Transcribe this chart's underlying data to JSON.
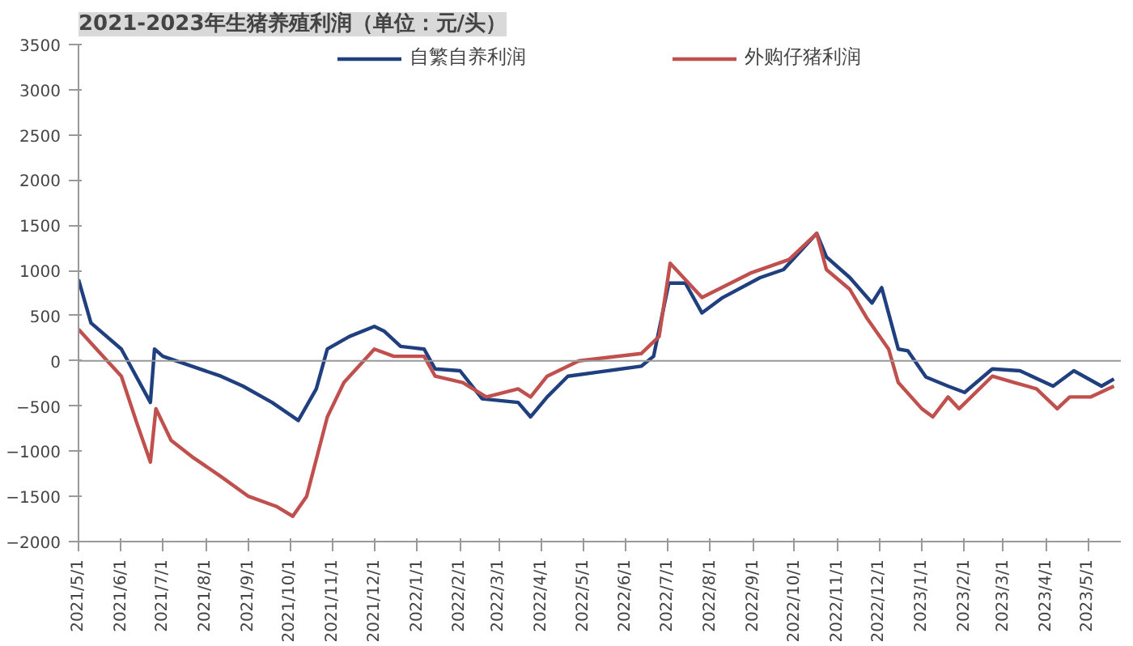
{
  "chart_data": {
    "type": "line",
    "title": "2021-2023年生猪养殖利润（单位：元/头）",
    "xlim": [
      "2021-05-01",
      "2023-05-25"
    ],
    "xticks": [
      {
        "value": "2021-05-01",
        "label": "2021/5/1"
      },
      {
        "value": "2021-06-01",
        "label": "2021/6/1"
      },
      {
        "value": "2021-07-01",
        "label": "2021/7/1"
      },
      {
        "value": "2021-08-01",
        "label": "2021/8/1"
      },
      {
        "value": "2021-09-01",
        "label": "2021/9/1"
      },
      {
        "value": "2021-10-01",
        "label": "2021/10/1"
      },
      {
        "value": "2021-11-01",
        "label": "2021/11/1"
      },
      {
        "value": "2021-12-01",
        "label": "2021/12/1"
      },
      {
        "value": "2022-01-01",
        "label": "2022/1/1"
      },
      {
        "value": "2022-02-01",
        "label": "2022/2/1"
      },
      {
        "value": "2022-03-01",
        "label": "2022/3/1"
      },
      {
        "value": "2022-04-01",
        "label": "2022/4/1"
      },
      {
        "value": "2022-05-01",
        "label": "2022/5/1"
      },
      {
        "value": "2022-06-01",
        "label": "2022/6/1"
      },
      {
        "value": "2022-07-01",
        "label": "2022/7/1"
      },
      {
        "value": "2022-08-01",
        "label": "2022/8/1"
      },
      {
        "value": "2022-09-01",
        "label": "2022/9/1"
      },
      {
        "value": "2022-10-01",
        "label": "2022/10/1"
      },
      {
        "value": "2022-11-01",
        "label": "2022/11/1"
      },
      {
        "value": "2022-12-01",
        "label": "2022/12/1"
      },
      {
        "value": "2023-01-01",
        "label": "2023/1/1"
      },
      {
        "value": "2023-02-01",
        "label": "2023/2/1"
      },
      {
        "value": "2023-03-01",
        "label": "2023/3/1"
      },
      {
        "value": "2023-04-01",
        "label": "2023/4/1"
      },
      {
        "value": "2023-05-01",
        "label": "2023/5/1"
      }
    ],
    "ylim": [
      -2000,
      3500
    ],
    "yticks": [
      -2000,
      -1500,
      -1000,
      -500,
      0,
      500,
      1000,
      1500,
      2000,
      2500,
      3000,
      3500
    ],
    "grid": false,
    "ref_lines": [
      {
        "axis": "y",
        "value": 0,
        "color": "#999999"
      }
    ],
    "legend": "top",
    "marker": "none",
    "line_style": "solid",
    "series": [
      {
        "name": "自繁自养利润",
        "color": "#1f3f7f",
        "x": [
          "2021-05-01",
          "2021-05-10",
          "2021-06-01",
          "2021-06-22",
          "2021-06-25",
          "2021-07-01",
          "2021-07-22",
          "2021-08-12",
          "2021-08-28",
          "2021-09-18",
          "2021-10-07",
          "2021-10-20",
          "2021-10-28",
          "2021-11-13",
          "2021-12-01",
          "2021-12-08",
          "2021-12-20",
          "2022-01-06",
          "2022-01-14",
          "2022-02-01",
          "2022-02-17",
          "2022-03-15",
          "2022-03-24",
          "2022-04-05",
          "2022-04-20",
          "2022-05-14",
          "2022-06-12",
          "2022-06-21",
          "2022-07-02",
          "2022-07-14",
          "2022-07-26",
          "2022-08-10",
          "2022-09-06",
          "2022-09-23",
          "2022-10-17",
          "2022-10-24",
          "2022-11-10",
          "2022-11-26",
          "2022-12-03",
          "2022-12-15",
          "2022-12-22",
          "2023-01-04",
          "2023-01-20",
          "2023-02-01",
          "2023-02-21",
          "2023-03-13",
          "2023-04-06",
          "2023-04-21",
          "2023-05-11",
          "2023-05-20"
        ],
        "values": [
          900,
          420,
          130,
          -460,
          130,
          50,
          -60,
          -170,
          -280,
          -460,
          -660,
          -310,
          130,
          270,
          380,
          330,
          160,
          130,
          -90,
          -110,
          -420,
          -460,
          -620,
          -400,
          -170,
          -120,
          -60,
          50,
          860,
          860,
          530,
          700,
          920,
          1010,
          1410,
          1150,
          920,
          640,
          810,
          130,
          110,
          -180,
          -280,
          -350,
          -90,
          -110,
          -280,
          -110,
          -280,
          -200
        ]
      },
      {
        "name": "外购仔猪利润",
        "color": "#c0504d",
        "x": [
          "2021-05-01",
          "2021-05-14",
          "2021-06-01",
          "2021-06-12",
          "2021-06-22",
          "2021-06-26",
          "2021-07-07",
          "2021-07-22",
          "2021-08-12",
          "2021-09-01",
          "2021-09-21",
          "2021-10-03",
          "2021-10-13",
          "2021-10-28",
          "2021-11-09",
          "2021-12-01",
          "2021-12-15",
          "2022-01-06",
          "2022-01-14",
          "2022-02-03",
          "2022-02-20",
          "2022-03-15",
          "2022-03-24",
          "2022-04-05",
          "2022-04-28",
          "2022-06-12",
          "2022-06-25",
          "2022-07-03",
          "2022-07-26",
          "2022-08-30",
          "2022-09-27",
          "2022-10-17",
          "2022-10-24",
          "2022-11-10",
          "2022-11-22",
          "2022-12-08",
          "2022-12-15",
          "2023-01-01",
          "2023-01-09",
          "2023-01-20",
          "2023-01-28",
          "2023-02-21",
          "2023-03-09",
          "2023-03-25",
          "2023-04-09",
          "2023-04-18",
          "2023-05-03",
          "2023-05-20"
        ],
        "values": [
          350,
          130,
          -170,
          -680,
          -1120,
          -530,
          -880,
          -1060,
          -1280,
          -1500,
          -1610,
          -1720,
          -1500,
          -620,
          -240,
          130,
          50,
          50,
          -170,
          -240,
          -400,
          -310,
          -400,
          -170,
          0,
          80,
          270,
          1080,
          700,
          970,
          1120,
          1410,
          1010,
          790,
          480,
          130,
          -240,
          -530,
          -620,
          -400,
          -530,
          -170,
          -240,
          -310,
          -530,
          -400,
          -400,
          -280
        ]
      }
    ]
  }
}
